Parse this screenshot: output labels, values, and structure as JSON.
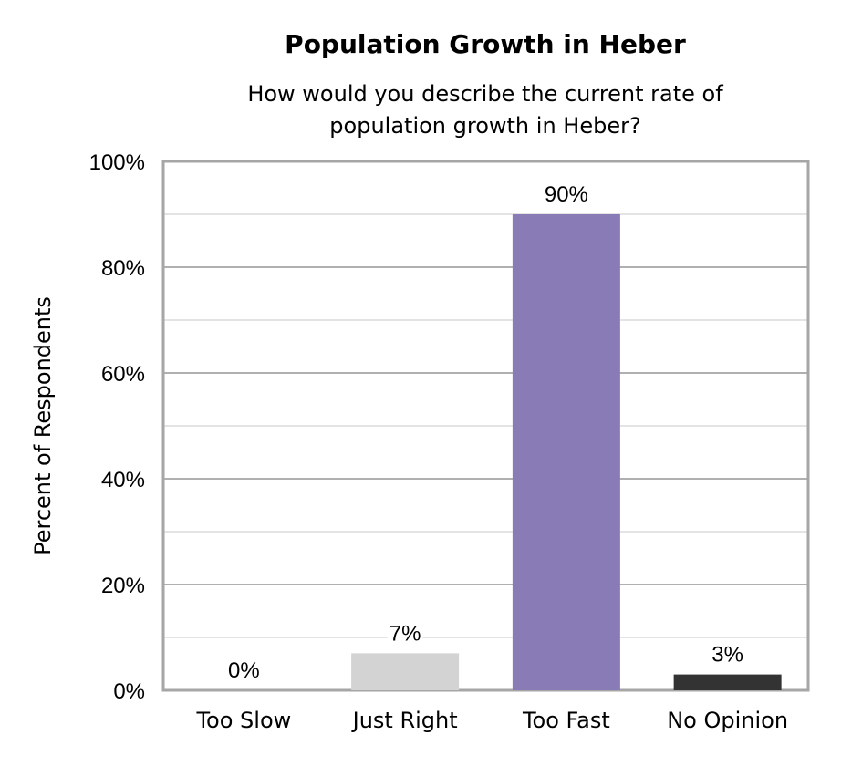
{
  "chart_data": {
    "type": "bar",
    "title": "Population Growth in Heber",
    "subtitle_lines": [
      "How would you describe the current rate of",
      "population growth in Heber?"
    ],
    "ylabel": "Percent of Respondents",
    "xlabel": "",
    "categories": [
      "Too Slow",
      "Just Right",
      "Too Fast",
      "No Opinion"
    ],
    "values": [
      0,
      7,
      90,
      3
    ],
    "data_labels": [
      "0%",
      "7%",
      "90%",
      "3%"
    ],
    "colors": [
      "#d3d3d3",
      "#d3d3d3",
      "#887bb6",
      "#333333"
    ],
    "ylim": [
      0,
      100
    ],
    "yticks": [
      0,
      20,
      40,
      60,
      80,
      100
    ],
    "ytick_labels": [
      "0%",
      "20%",
      "40%",
      "60%",
      "80%",
      "100%"
    ],
    "grid": true,
    "legend": "none"
  }
}
